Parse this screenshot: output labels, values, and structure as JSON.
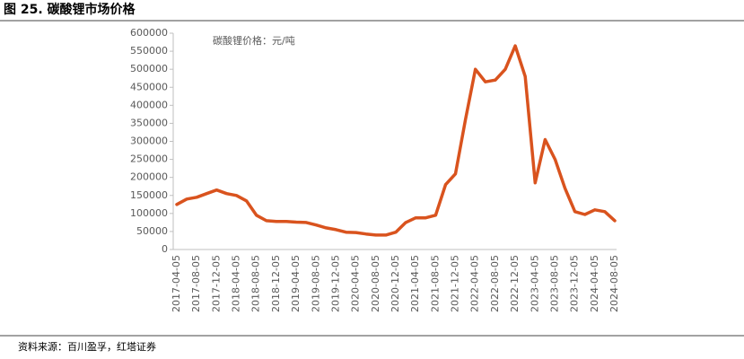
{
  "chart_data": {
    "type": "line",
    "title": "图 25. 碳酸锂市场价格",
    "source": "资料来源：百川盈孚，红塔证券",
    "categories": [
      "2017-04-05",
      null,
      "2017-08-05",
      null,
      "2017-12-05",
      null,
      "2018-04-05",
      null,
      "2018-08-05",
      null,
      "2018-12-05",
      null,
      "2019-04-05",
      null,
      "2019-08-05",
      null,
      "2019-12-05",
      null,
      "2020-04-05",
      null,
      "2020-08-05",
      null,
      "2020-12-05",
      null,
      "2021-04-05",
      null,
      "2021-08-05",
      null,
      "2021-12-05",
      null,
      "2022-04-05",
      null,
      "2022-08-05",
      null,
      "2022-12-05",
      null,
      "2023-04-05",
      null,
      "2023-08-05",
      null,
      "2023-12-05",
      null,
      "2024-04-05",
      null,
      "2024-08-05"
    ],
    "series": [
      {
        "name": "碳酸锂价格：元/吨",
        "color": "#d9531e",
        "values": [
          125000,
          140000,
          145000,
          155000,
          165000,
          155000,
          150000,
          135000,
          95000,
          80000,
          78000,
          78000,
          76000,
          75000,
          68000,
          60000,
          55000,
          48000,
          47000,
          43000,
          40000,
          40000,
          48000,
          75000,
          88000,
          88000,
          95000,
          180000,
          210000,
          360000,
          500000,
          465000,
          470000,
          500000,
          565000,
          480000,
          185000,
          305000,
          250000,
          170000,
          105000,
          97000,
          110000,
          105000,
          80000
        ]
      }
    ],
    "ylim": [
      0,
      600000
    ],
    "yticks": [
      0,
      50000,
      100000,
      150000,
      200000,
      250000,
      300000,
      350000,
      400000,
      450000,
      500000,
      550000,
      600000
    ],
    "grid": false
  }
}
